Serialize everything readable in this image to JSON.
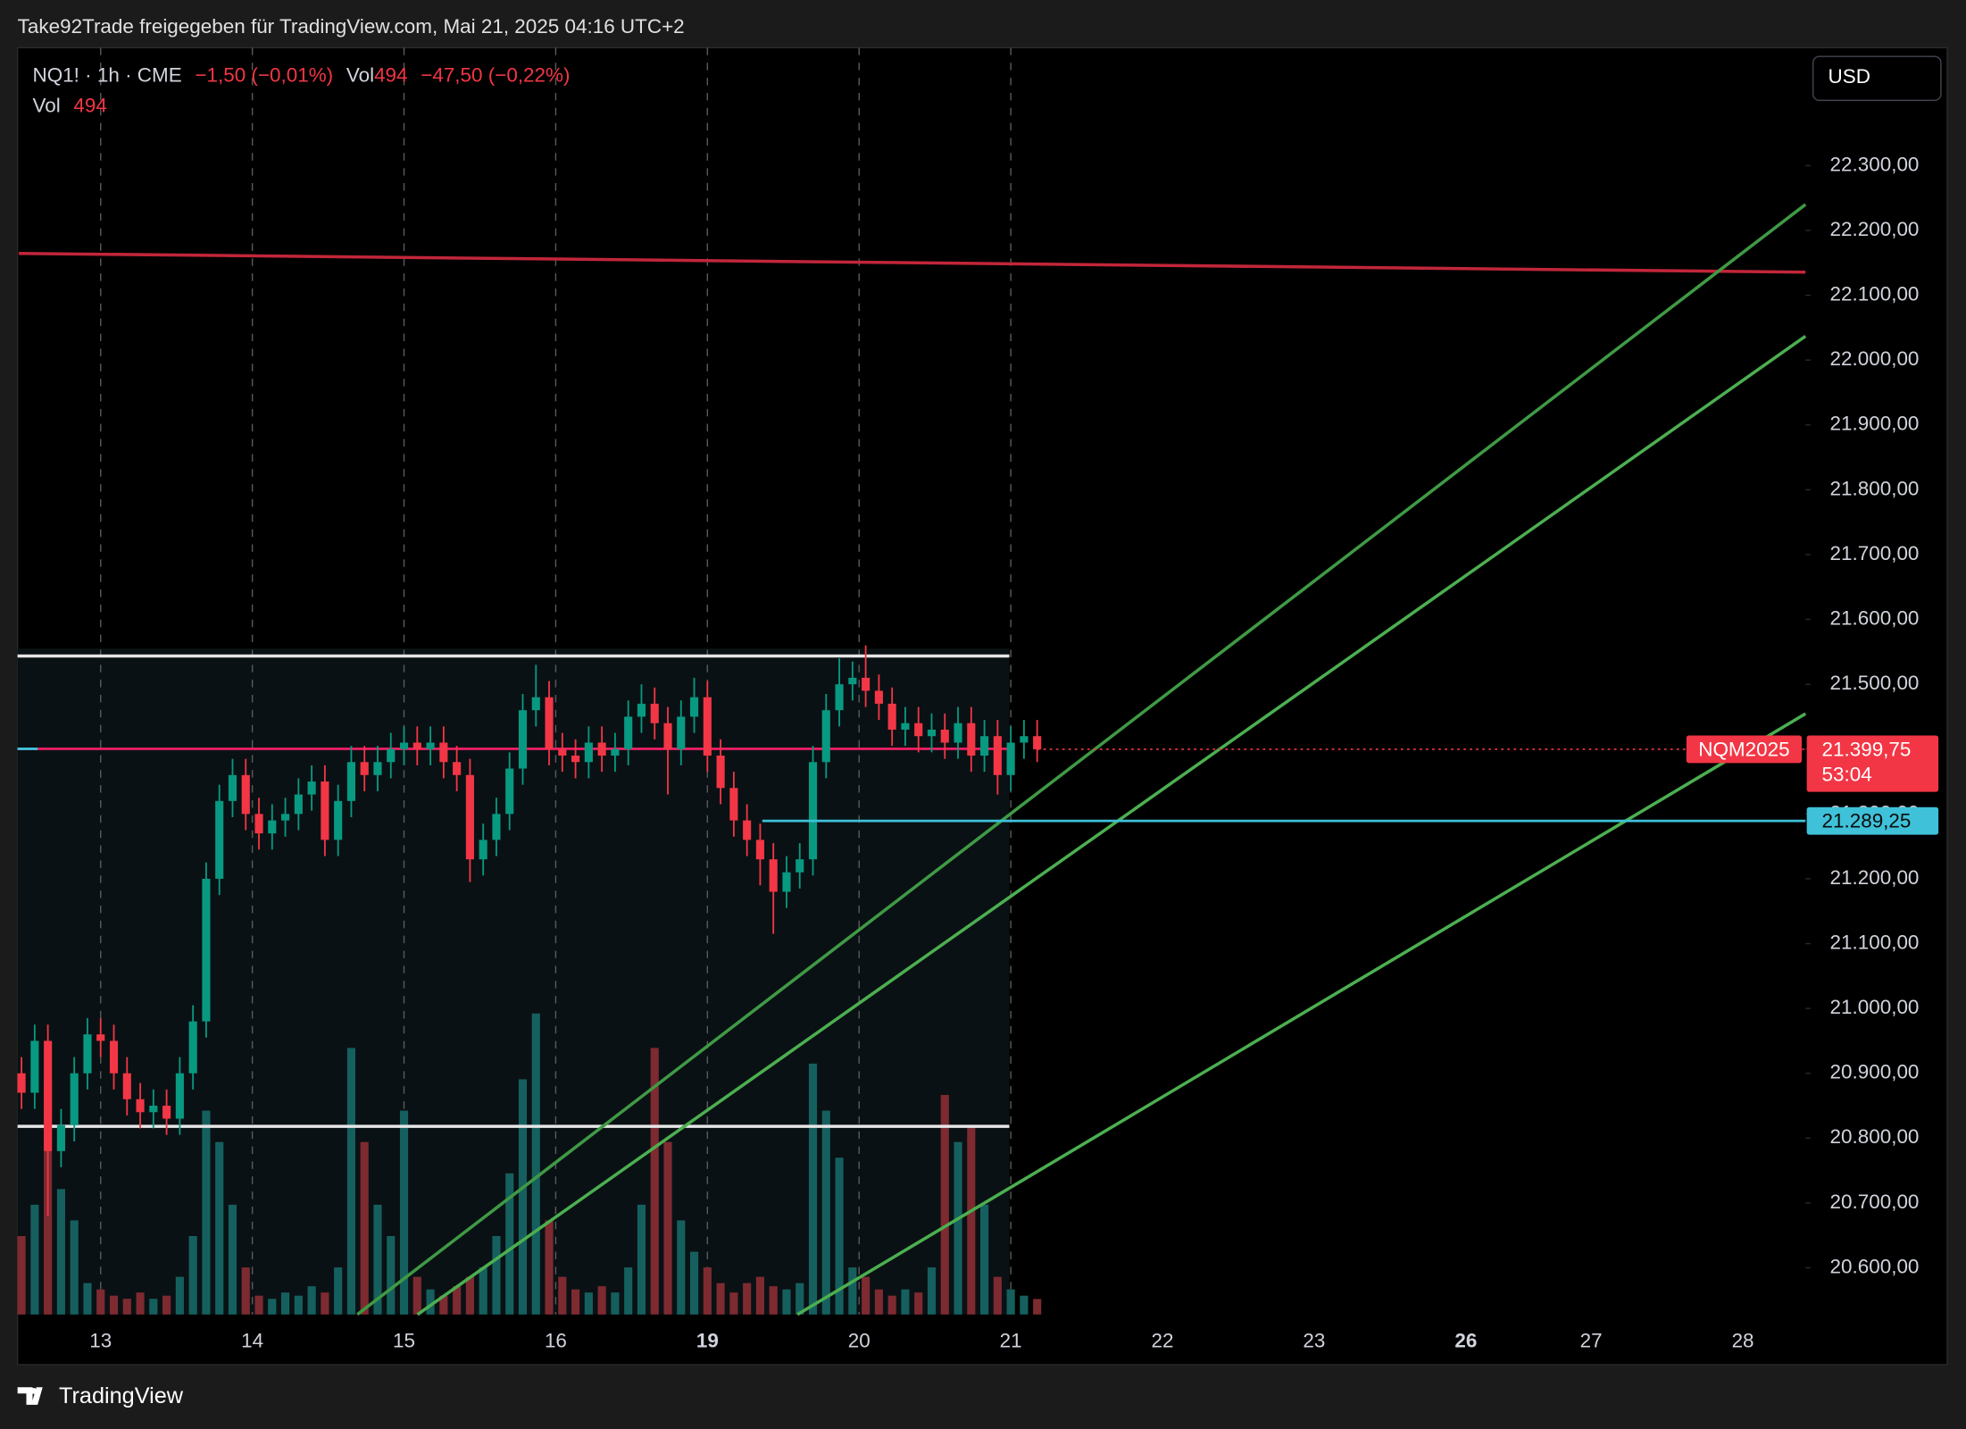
{
  "header": {
    "title": "Take92Trade freigegeben für TradingView.com, Mai 21, 2025 04:16 UTC+2"
  },
  "footer": {
    "brand": "TradingView"
  },
  "chart_data": {
    "type": "candlestick",
    "legend": {
      "symbol": "NQ1! · 1h · CME",
      "change": "−1,50 (−0,01%)",
      "vol_label": "Vol",
      "vol": "494",
      "vol_change": "−47,50 (−0,22%)"
    },
    "currency": "USD",
    "up_color": "#089981",
    "down_color": "#f23645",
    "volume_up_color": "#15605f",
    "volume_down_color": "#7e2a31",
    "ylim": [
      20528,
      22478
    ],
    "yticks": [
      {
        "value": 20600,
        "label": "20.600,00"
      },
      {
        "value": 20700,
        "label": "20.700,00"
      },
      {
        "value": 20800,
        "label": "20.800,00"
      },
      {
        "value": 20900,
        "label": "20.900,00"
      },
      {
        "value": 21000,
        "label": "21.000,00"
      },
      {
        "value": 21100,
        "label": "21.100,00"
      },
      {
        "value": 21200,
        "label": "21.200,00"
      },
      {
        "value": 21300,
        "label": "21.300,00"
      },
      {
        "value": 21400,
        "label": "21.400,00"
      },
      {
        "value": 21500,
        "label": "21.500,00"
      },
      {
        "value": 21600,
        "label": "21.600,00"
      },
      {
        "value": 21700,
        "label": "21.700,00"
      },
      {
        "value": 21800,
        "label": "21.800,00"
      },
      {
        "value": 21900,
        "label": "21.900,00"
      },
      {
        "value": 22000,
        "label": "22.000,00"
      },
      {
        "value": 22100,
        "label": "22.100,00"
      },
      {
        "value": 22200,
        "label": "22.200,00"
      },
      {
        "value": 22300,
        "label": "22.300,00"
      }
    ],
    "xlim": [
      -0.6,
      270.5
    ],
    "xticks": [
      {
        "value": 12,
        "label": "13"
      },
      {
        "value": 35,
        "label": "14"
      },
      {
        "value": 58,
        "label": "15"
      },
      {
        "value": 81,
        "label": "16"
      },
      {
        "value": 104,
        "label": "19",
        "bold": true
      },
      {
        "value": 127,
        "label": "20"
      },
      {
        "value": 150,
        "label": "21"
      },
      {
        "value": 173,
        "label": "22"
      },
      {
        "value": 196,
        "label": "23"
      },
      {
        "value": 219,
        "label": "26",
        "bold": true
      },
      {
        "value": 238,
        "label": "27"
      },
      {
        "value": 261,
        "label": "28"
      }
    ],
    "volume_lim": [
      0,
      12000
    ],
    "candles": {
      "x": [
        0,
        2,
        4,
        6,
        8,
        10,
        12,
        14,
        16,
        18,
        20,
        22,
        24,
        26,
        28,
        30,
        32,
        34,
        36,
        38,
        40,
        42,
        44,
        46,
        48,
        50,
        52,
        54,
        56,
        58,
        60,
        62,
        64,
        66,
        68,
        70,
        72,
        74,
        76,
        78,
        80,
        82,
        84,
        86,
        88,
        90,
        92,
        94,
        96,
        98,
        100,
        102,
        104,
        106,
        108,
        110,
        112,
        114,
        116,
        118,
        120,
        122,
        124,
        126,
        128,
        130,
        132,
        134,
        136,
        138,
        140,
        142,
        144,
        146,
        148,
        150,
        152,
        154
      ],
      "open": [
        20900,
        20870,
        20950,
        20780,
        20820,
        20900,
        20960,
        20950,
        20900,
        20860,
        20840,
        20850,
        20830,
        20900,
        20980,
        21200,
        21320,
        21360,
        21300,
        21270,
        21290,
        21300,
        21330,
        21350,
        21260,
        21320,
        21380,
        21360,
        21380,
        21400,
        21410,
        21400,
        21410,
        21380,
        21360,
        21230,
        21260,
        21300,
        21370,
        21460,
        21480,
        21400,
        21390,
        21380,
        21410,
        21390,
        21400,
        21450,
        21470,
        21440,
        21400,
        21450,
        21480,
        21390,
        21340,
        21290,
        21260,
        21230,
        21180,
        21210,
        21230,
        21380,
        21460,
        21500,
        21510,
        21490,
        21470,
        21430,
        21440,
        21420,
        21430,
        21410,
        21440,
        21390,
        21420,
        21360,
        21410,
        21420
      ],
      "high": [
        20925,
        20975,
        20975,
        20845,
        20925,
        20985,
        20985,
        20975,
        20925,
        20885,
        20875,
        20875,
        20925,
        21005,
        21225,
        21345,
        21385,
        21385,
        21325,
        21315,
        21325,
        21355,
        21375,
        21375,
        21345,
        21405,
        21405,
        21405,
        21425,
        21435,
        21435,
        21435,
        21435,
        21405,
        21385,
        21285,
        21325,
        21395,
        21485,
        21530,
        21505,
        21425,
        21415,
        21435,
        21435,
        21425,
        21475,
        21500,
        21495,
        21465,
        21475,
        21510,
        21505,
        21415,
        21365,
        21315,
        21285,
        21255,
        21235,
        21255,
        21405,
        21485,
        21540,
        21535,
        21560,
        21515,
        21495,
        21465,
        21465,
        21455,
        21455,
        21465,
        21465,
        21445,
        21445,
        21435,
        21445,
        21445
      ],
      "low": [
        20845,
        20845,
        20680,
        20755,
        20795,
        20875,
        20925,
        20875,
        20835,
        20815,
        20815,
        20805,
        20805,
        20875,
        20955,
        21175,
        21295,
        21275,
        21245,
        21245,
        21265,
        21275,
        21305,
        21235,
        21235,
        21295,
        21335,
        21335,
        21355,
        21375,
        21375,
        21375,
        21355,
        21335,
        21195,
        21205,
        21235,
        21275,
        21345,
        21435,
        21375,
        21365,
        21355,
        21355,
        21365,
        21365,
        21375,
        21425,
        21415,
        21330,
        21375,
        21425,
        21365,
        21315,
        21265,
        21235,
        21190,
        21115,
        21155,
        21185,
        21205,
        21355,
        21435,
        21475,
        21465,
        21445,
        21405,
        21405,
        21395,
        21395,
        21385,
        21385,
        21365,
        21365,
        21330,
        21335,
        21385,
        21380
      ],
      "close": [
        20870,
        20950,
        20780,
        20820,
        20900,
        20960,
        20950,
        20900,
        20860,
        20840,
        20850,
        20830,
        20900,
        20980,
        21200,
        21320,
        21360,
        21300,
        21270,
        21290,
        21300,
        21330,
        21350,
        21260,
        21320,
        21380,
        21360,
        21380,
        21400,
        21410,
        21400,
        21410,
        21380,
        21360,
        21230,
        21260,
        21300,
        21370,
        21460,
        21480,
        21400,
        21390,
        21380,
        21410,
        21390,
        21400,
        21450,
        21470,
        21440,
        21400,
        21450,
        21480,
        21390,
        21340,
        21290,
        21260,
        21230,
        21180,
        21210,
        21230,
        21380,
        21460,
        21500,
        21510,
        21490,
        21470,
        21430,
        21440,
        21420,
        21430,
        21410,
        21440,
        21390,
        21420,
        21360,
        21410,
        21420,
        21399.75
      ],
      "volume": [
        2500,
        3500,
        7500,
        4000,
        3000,
        1000,
        800,
        600,
        500,
        700,
        500,
        600,
        1200,
        2500,
        6500,
        5500,
        3500,
        1500,
        600,
        500,
        700,
        600,
        900,
        700,
        1500,
        8500,
        5500,
        3500,
        2500,
        6500,
        1200,
        800,
        600,
        900,
        1200,
        1500,
        2500,
        4500,
        7500,
        9600,
        3000,
        1200,
        800,
        700,
        900,
        700,
        1500,
        3500,
        8500,
        5500,
        3000,
        2000,
        1500,
        1000,
        700,
        1000,
        1200,
        900,
        800,
        1000,
        8000,
        6500,
        5000,
        1500,
        1200,
        800,
        600,
        800,
        700,
        1500,
        7000,
        5500,
        6000,
        3500,
        1200,
        800,
        600,
        494
      ]
    },
    "current_price": {
      "value": 21399.75,
      "label": "21.399,75",
      "symbol": "NQM2025",
      "countdown": "53:04"
    },
    "price_line": {
      "value": 21289.25,
      "label": "21.289,25"
    }
  }
}
